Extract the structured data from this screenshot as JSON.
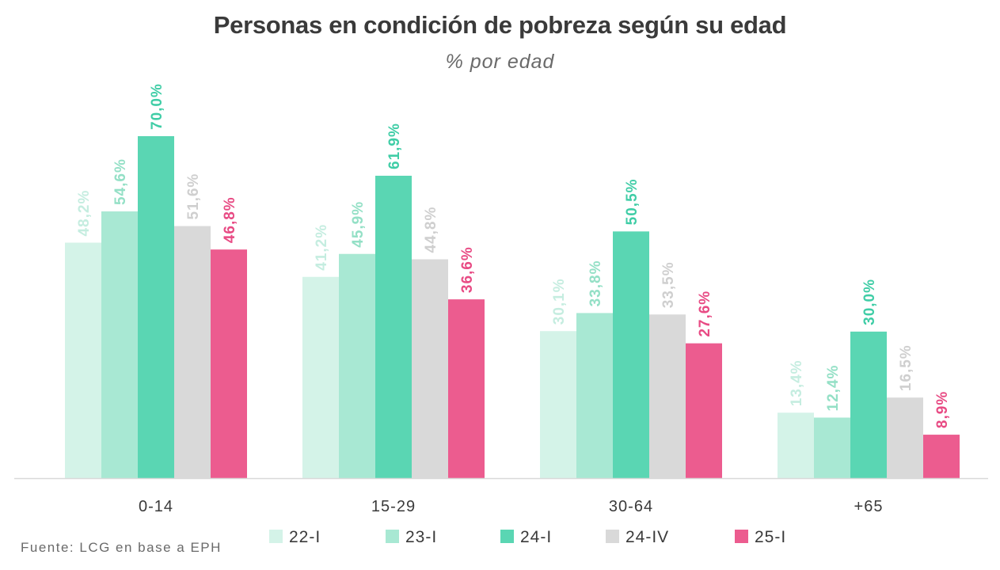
{
  "chart_data": {
    "type": "bar",
    "title": "Personas en condición de pobreza según su edad",
    "subtitle": "% por edad",
    "categories": [
      "0-14",
      "15-29",
      "30-64",
      "+65"
    ],
    "series": [
      {
        "name": "22-I",
        "color": "#d4f3e8",
        "label_color": "#c5ede0",
        "label_weight": "normal",
        "values": [
          48.2,
          41.2,
          30.1,
          13.4
        ],
        "labels": [
          "48,2%",
          "41,2%",
          "30,1%",
          "13,4%"
        ]
      },
      {
        "name": "23-I",
        "color": "#a8e8d3",
        "label_color": "#94e0c6",
        "label_weight": "normal",
        "values": [
          54.6,
          45.9,
          33.8,
          12.4
        ],
        "labels": [
          "54,6%",
          "45,9%",
          "33,8%",
          "12,4%"
        ]
      },
      {
        "name": "24-I",
        "color": "#5ad6b3",
        "label_color": "#3fcda6",
        "label_weight": "bold",
        "values": [
          70.0,
          61.9,
          50.5,
          30.0
        ],
        "labels": [
          "70,0%",
          "61,9%",
          "50,5%",
          "30,0%"
        ]
      },
      {
        "name": "24-IV",
        "color": "#d9d9d9",
        "label_color": "#cfcfcf",
        "label_weight": "normal",
        "values": [
          51.6,
          44.8,
          33.5,
          16.5
        ],
        "labels": [
          "51,6%",
          "44,8%",
          "33,5%",
          "16,5%"
        ]
      },
      {
        "name": "25-I",
        "color": "#ec5c8f",
        "label_color": "#e84b84",
        "label_weight": "bold",
        "values": [
          46.8,
          36.6,
          27.6,
          8.9
        ],
        "labels": [
          "46,8%",
          "36,6%",
          "27,6%",
          "8,9%"
        ]
      }
    ],
    "ylim": [
      0,
      70
    ],
    "grid": false,
    "legend_position": "bottom",
    "xlabel": "",
    "ylabel": ""
  },
  "source": "Fuente: LCG en base a EPH"
}
